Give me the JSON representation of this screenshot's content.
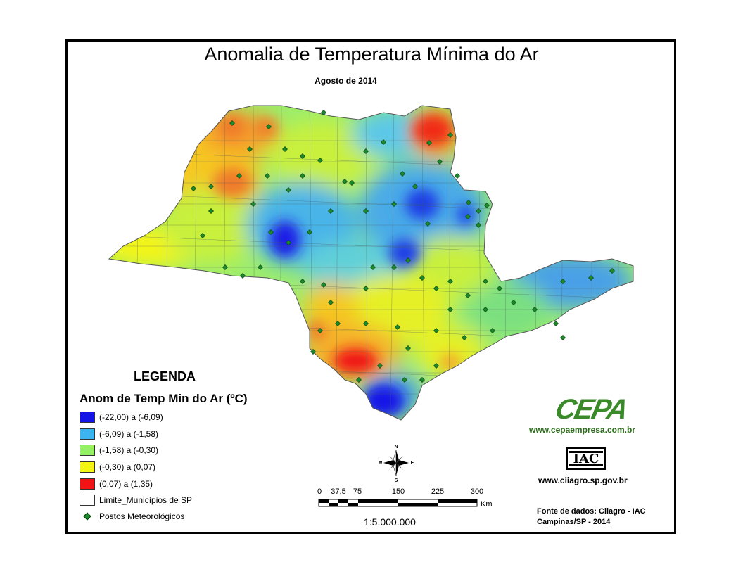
{
  "title": "Anomalia de Temperatura Mínima do Ar",
  "subtitle": "Agosto de 2014",
  "legend": {
    "heading": "LEGENDA",
    "subheading": "Anom de Temp Min do Ar (ºC)",
    "classes": [
      {
        "label": "(-22,00) a (-6,09)",
        "color": "#1414e6"
      },
      {
        "label": "(-6,09) a (-1,58)",
        "color": "#3cb4f0"
      },
      {
        "label": "(-1,58) a (-0,30)",
        "color": "#96f064"
      },
      {
        "label": "(-0,30) a (0,07)",
        "color": "#f5f514"
      },
      {
        "label": "(0,07) a (1,35)",
        "color": "#f01414"
      }
    ],
    "boundary_label": "Limite_Municípios de SP",
    "stations_label": "Postos Meteorológicos"
  },
  "scale": {
    "ticks": [
      "0",
      "37,5",
      "75",
      "150",
      "225",
      "300"
    ],
    "unit": "Km",
    "ratio": "1:5.000.000"
  },
  "compass": {
    "n": "N",
    "s": "S",
    "e": "E",
    "w": "W"
  },
  "logos": {
    "cepa": "CEPA",
    "cepa_url": "www.cepaempresa.com.br",
    "iac": "IAC",
    "ciiagro_url": "www.ciiagro.sp.gov.br"
  },
  "source": {
    "line1": "Fonte de dados: Ciiagro - IAC",
    "line2": "Campinas/SP - 2014"
  }
}
